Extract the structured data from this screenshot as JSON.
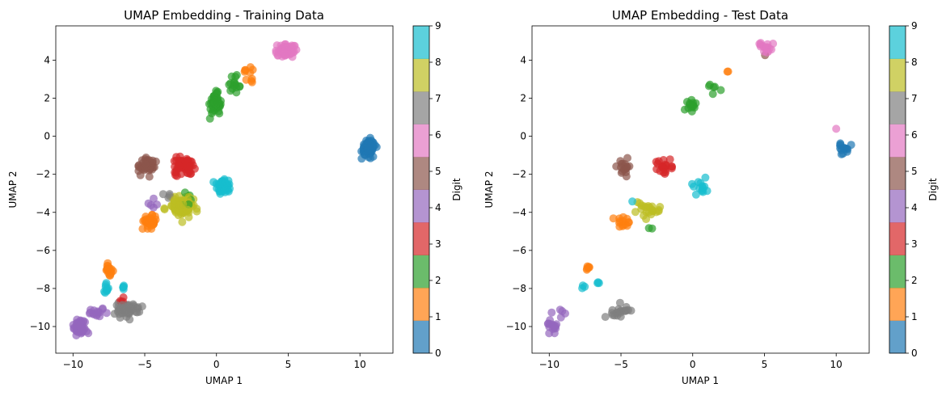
{
  "colorbar": {
    "label": "Digit",
    "ticks": [
      "0",
      "1",
      "2",
      "3",
      "4",
      "5",
      "6",
      "7",
      "8",
      "9"
    ],
    "colors": [
      "#1f77b4",
      "#ff7f0e",
      "#2ca02c",
      "#d62728",
      "#9467bd",
      "#8c564b",
      "#e377c2",
      "#7f7f7f",
      "#bcbd22",
      "#17becf"
    ]
  },
  "chart_data": [
    {
      "type": "scatter",
      "title": "UMAP Embedding - Training Data",
      "xlabel": "UMAP 1",
      "ylabel": "UMAP 2",
      "xlim": [
        -11.2,
        12.3
      ],
      "ylim": [
        -11.4,
        5.8
      ],
      "xticks": [
        -10,
        -5,
        0,
        5,
        10
      ],
      "yticks": [
        -10,
        -8,
        -6,
        -4,
        -2,
        0,
        2,
        4
      ],
      "grid": false,
      "clusters": [
        {
          "digit": 0,
          "x": 10.6,
          "y": -0.6,
          "sx": 0.4,
          "sy": 0.35,
          "n": 90
        },
        {
          "digit": 1,
          "x": -4.6,
          "y": -4.5,
          "sx": 0.35,
          "sy": 0.3,
          "n": 40
        },
        {
          "digit": 1,
          "x": -7.5,
          "y": -7.0,
          "sx": 0.25,
          "sy": 0.2,
          "n": 18
        },
        {
          "digit": 1,
          "x": 2.3,
          "y": 3.4,
          "sx": 0.35,
          "sy": 0.3,
          "n": 10
        },
        {
          "digit": 2,
          "x": -0.1,
          "y": 1.7,
          "sx": 0.3,
          "sy": 0.45,
          "n": 50
        },
        {
          "digit": 2,
          "x": 1.3,
          "y": 2.6,
          "sx": 0.5,
          "sy": 0.4,
          "n": 15
        },
        {
          "digit": 2,
          "x": -2.0,
          "y": -3.3,
          "sx": 0.5,
          "sy": 0.6,
          "n": 6
        },
        {
          "digit": 3,
          "x": -2.3,
          "y": -1.6,
          "sx": 0.6,
          "sy": 0.4,
          "n": 60
        },
        {
          "digit": 3,
          "x": -6.5,
          "y": -8.6,
          "sx": 0.2,
          "sy": 0.15,
          "n": 4
        },
        {
          "digit": 4,
          "x": -9.5,
          "y": -10.0,
          "sx": 0.5,
          "sy": 0.3,
          "n": 60
        },
        {
          "digit": 4,
          "x": -8.3,
          "y": -9.3,
          "sx": 0.5,
          "sy": 0.2,
          "n": 15
        },
        {
          "digit": 4,
          "x": -4.5,
          "y": -3.6,
          "sx": 0.4,
          "sy": 0.3,
          "n": 5
        },
        {
          "digit": 5,
          "x": -4.8,
          "y": -1.5,
          "sx": 0.45,
          "sy": 0.4,
          "n": 45
        },
        {
          "digit": 6,
          "x": 4.8,
          "y": 4.5,
          "sx": 0.5,
          "sy": 0.25,
          "n": 70
        },
        {
          "digit": 7,
          "x": -6.3,
          "y": -9.1,
          "sx": 0.8,
          "sy": 0.3,
          "n": 60
        },
        {
          "digit": 7,
          "x": -3.4,
          "y": -3.1,
          "sx": 0.3,
          "sy": 0.3,
          "n": 4
        },
        {
          "digit": 8,
          "x": -2.4,
          "y": -3.7,
          "sx": 0.8,
          "sy": 0.45,
          "n": 90
        },
        {
          "digit": 9,
          "x": 0.5,
          "y": -2.6,
          "sx": 0.4,
          "sy": 0.35,
          "n": 45
        },
        {
          "digit": 9,
          "x": -7.7,
          "y": -8.0,
          "sx": 0.15,
          "sy": 0.35,
          "n": 10
        },
        {
          "digit": 9,
          "x": -6.4,
          "y": -7.9,
          "sx": 0.25,
          "sy": 0.1,
          "n": 5
        }
      ]
    },
    {
      "type": "scatter",
      "title": "UMAP Embedding - Test Data",
      "xlabel": "UMAP 1",
      "ylabel": "UMAP 2",
      "xlim": [
        -11.2,
        12.3
      ],
      "ylim": [
        -11.4,
        5.8
      ],
      "xticks": [
        -10,
        -5,
        0,
        5,
        10
      ],
      "yticks": [
        -10,
        -8,
        -6,
        -4,
        -2,
        0,
        2,
        4
      ],
      "grid": false,
      "clusters": [
        {
          "digit": 0,
          "x": 10.5,
          "y": -0.6,
          "sx": 0.35,
          "sy": 0.35,
          "n": 14
        },
        {
          "digit": 1,
          "x": -4.8,
          "y": -4.5,
          "sx": 0.5,
          "sy": 0.25,
          "n": 14
        },
        {
          "digit": 1,
          "x": -7.3,
          "y": -6.9,
          "sx": 0.3,
          "sy": 0.15,
          "n": 6
        },
        {
          "digit": 1,
          "x": 2.4,
          "y": 3.4,
          "sx": 0.1,
          "sy": 0.1,
          "n": 2
        },
        {
          "digit": 2,
          "x": -0.1,
          "y": 1.6,
          "sx": 0.3,
          "sy": 0.4,
          "n": 14
        },
        {
          "digit": 2,
          "x": 1.3,
          "y": 2.6,
          "sx": 0.4,
          "sy": 0.4,
          "n": 6
        },
        {
          "digit": 2,
          "x": -3.0,
          "y": -4.8,
          "sx": 0.2,
          "sy": 0.1,
          "n": 2
        },
        {
          "digit": 3,
          "x": -2.0,
          "y": -1.6,
          "sx": 0.6,
          "sy": 0.35,
          "n": 22
        },
        {
          "digit": 4,
          "x": -9.8,
          "y": -10.0,
          "sx": 0.3,
          "sy": 0.35,
          "n": 15
        },
        {
          "digit": 4,
          "x": -9.1,
          "y": -9.3,
          "sx": 0.5,
          "sy": 0.2,
          "n": 5
        },
        {
          "digit": 5,
          "x": -4.9,
          "y": -1.5,
          "sx": 0.5,
          "sy": 0.4,
          "n": 18
        },
        {
          "digit": 5,
          "x": 5.0,
          "y": 4.3,
          "sx": 0.05,
          "sy": 0.05,
          "n": 1
        },
        {
          "digit": 6,
          "x": 5.1,
          "y": 4.7,
          "sx": 0.5,
          "sy": 0.25,
          "n": 18
        },
        {
          "digit": 6,
          "x": 10.0,
          "y": 0.4,
          "sx": 0.05,
          "sy": 0.05,
          "n": 1
        },
        {
          "digit": 7,
          "x": -5.2,
          "y": -9.2,
          "sx": 0.7,
          "sy": 0.3,
          "n": 20
        },
        {
          "digit": 8,
          "x": -3.0,
          "y": -3.8,
          "sx": 0.9,
          "sy": 0.4,
          "n": 22
        },
        {
          "digit": 9,
          "x": 0.5,
          "y": -2.7,
          "sx": 0.45,
          "sy": 0.35,
          "n": 14
        },
        {
          "digit": 9,
          "x": -7.6,
          "y": -8.0,
          "sx": 0.1,
          "sy": 0.2,
          "n": 3
        },
        {
          "digit": 9,
          "x": -6.6,
          "y": -7.7,
          "sx": 0.15,
          "sy": 0.05,
          "n": 3
        },
        {
          "digit": 9,
          "x": -4.2,
          "y": -3.4,
          "sx": 0.05,
          "sy": 0.05,
          "n": 1
        }
      ]
    }
  ]
}
